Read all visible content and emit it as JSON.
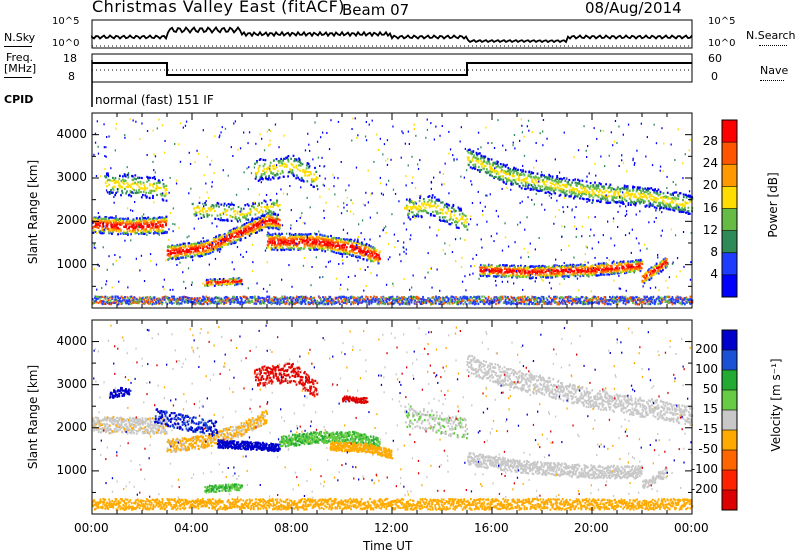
{
  "header": {
    "title": "Christmas Valley East (fitACF)",
    "beam": "Beam 07",
    "date": "08/Aug/2014"
  },
  "summary_panels": {
    "nsky_label": "N.Sky",
    "nsearch_label": "N.Search",
    "freq_label_line1": "Freq.",
    "freq_label_line2": "[MHz]",
    "nave_label": "Nave",
    "cpid_label": "CPID",
    "cpid_value": "normal (fast) 151 IF",
    "noise_ticks_left": [
      "10^5",
      "10^0"
    ],
    "noise_ticks_right": [
      "10^5",
      "10^0"
    ],
    "freq_ticks": [
      "18",
      "8"
    ],
    "nave_ticks": [
      "60",
      "0"
    ]
  },
  "chart_data": [
    {
      "type": "heatmap",
      "panel": "power",
      "xlabel": "Time UT",
      "ylabel": "Slant Range [km]",
      "x_ticks": [
        "00:00",
        "04:00",
        "08:00",
        "12:00",
        "16:00",
        "20:00",
        "00:00"
      ],
      "y_ticks": [
        "1000",
        "2000",
        "3000",
        "4000"
      ],
      "ylim": [
        0,
        4500
      ],
      "colorbar": {
        "label": "Power [dB]",
        "ticks": [
          "28",
          "24",
          "20",
          "16",
          "12",
          "8",
          "4"
        ],
        "colors": [
          "#ff0000",
          "#ff5500",
          "#ff9900",
          "#ffdd00",
          "#66bb44",
          "#2e8b57",
          "#1e3cff",
          "#0000ff"
        ]
      }
    },
    {
      "type": "heatmap",
      "panel": "velocity",
      "xlabel": "Time UT",
      "ylabel": "Slant Range [km]",
      "x_ticks": [
        "00:00",
        "04:00",
        "08:00",
        "12:00",
        "16:00",
        "20:00",
        "00:00"
      ],
      "y_ticks": [
        "1000",
        "2000",
        "3000",
        "4000"
      ],
      "ylim": [
        0,
        4500
      ],
      "colorbar": {
        "label": "Velocity [m s⁻¹]",
        "ticks": [
          "200",
          "100",
          "50",
          "15",
          "-15",
          "-50",
          "-100",
          "-200"
        ],
        "colors": [
          "#0000cc",
          "#1a52d6",
          "#22aa33",
          "#66cc44",
          "#c8c8c8",
          "#ffaa00",
          "#ff6600",
          "#ff2200",
          "#dd0000"
        ]
      }
    }
  ],
  "xaxis_title": "Time UT"
}
